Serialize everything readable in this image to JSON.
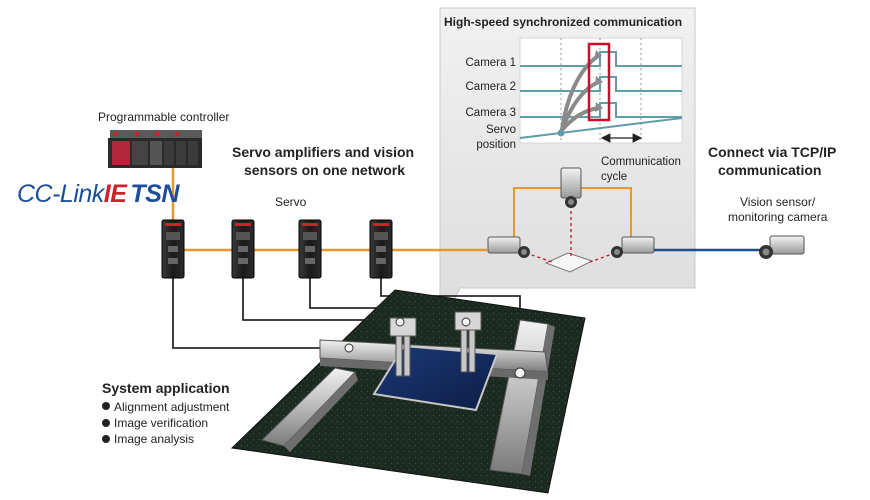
{
  "labels": {
    "plc": "Programmable controller",
    "brand": {
      "part1": "CC-Link",
      "part2": "IE",
      "part3": "TSN"
    },
    "servo_headline": {
      "line1": "Servo amplifiers and vision",
      "line2": "sensors on one network"
    },
    "servo": "Servo",
    "tcp_headline": {
      "line1": "Connect via TCP/IP",
      "line2": "communication"
    },
    "vision": {
      "line1": "Vision sensor/",
      "line2": "monitoring camera"
    },
    "sync_title": "High-speed synchronized communication",
    "camera1": "Camera 1",
    "camera2": "Camera 2",
    "camera3": "Camera 3",
    "servo_pos": {
      "line1": "Servo",
      "line2": "position"
    },
    "comm_cycle": {
      "line1": "Communication",
      "line2": "cycle"
    },
    "system": {
      "title": "System application",
      "items": [
        "Alignment adjustment",
        "Image verification",
        "Image analysis"
      ]
    }
  },
  "colors": {
    "network": "#e8962e",
    "tcp": "#1c4f8c",
    "brand_blue": "#1a4f9c",
    "brand_red": "#d0202a",
    "signal": "#5d9ea8",
    "highlight": "#c8102e"
  }
}
